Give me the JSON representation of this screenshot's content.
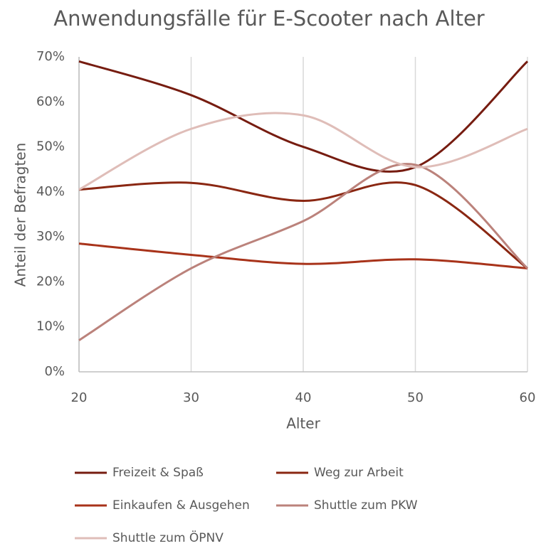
{
  "chart_data": {
    "type": "line",
    "title": "Anwendungsfälle für E-Scooter nach Alter",
    "x_label": "Alter",
    "y_label": "Anteil der Befragten",
    "x": [
      20,
      30,
      40,
      50,
      60
    ],
    "xlim": [
      20,
      60
    ],
    "xticks": [
      20,
      30,
      40,
      50,
      60
    ],
    "ylim": [
      0,
      70
    ],
    "yticks": [
      {
        "value": 0,
        "label": "0%"
      },
      {
        "value": 10,
        "label": "10%"
      },
      {
        "value": 20,
        "label": "20%"
      },
      {
        "value": 30,
        "label": "30%"
      },
      {
        "value": 40,
        "label": "40%"
      },
      {
        "value": 50,
        "label": "50%"
      },
      {
        "value": 60,
        "label": "60%"
      },
      {
        "value": 70,
        "label": "70%"
      }
    ],
    "grid": "vertical",
    "smooth": true,
    "legend": "bottom",
    "series": [
      {
        "name": "Freizeit & Spaß",
        "color": "#761c10",
        "values": [
          69,
          61.5,
          50,
          45.5,
          69
        ]
      },
      {
        "name": "Weg zur Arbeit",
        "color": "#8a2712",
        "values": [
          40.5,
          42,
          38,
          41.5,
          23
        ]
      },
      {
        "name": "Einkaufen & Ausgehen",
        "color": "#a8331a",
        "values": [
          28.5,
          26,
          24,
          25,
          23
        ]
      },
      {
        "name": "Shuttle zum PKW",
        "color": "#bb827b",
        "values": [
          7,
          23,
          33.5,
          46,
          23
        ]
      },
      {
        "name": "Shuttle zum ÖPNV",
        "color": "#dfbdb8",
        "values": [
          40.5,
          54,
          57,
          45.5,
          54
        ]
      }
    ]
  }
}
